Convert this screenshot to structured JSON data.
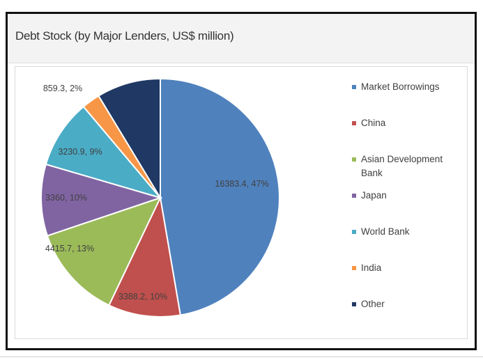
{
  "title": "Debt Stock (by Major Lenders, US$ million)",
  "chart_data": {
    "type": "pie",
    "title": "Debt Stock (by Major Lenders, US$ million)",
    "legend_position": "right",
    "slices": [
      {
        "label": "Market Borrowings",
        "value": 16383.4,
        "percent": 47,
        "data_label": "16383.4, 47%",
        "color": "#4f81bd"
      },
      {
        "label": "China",
        "value": 3388.2,
        "percent": 10,
        "data_label": "3388.2, 10%",
        "color": "#c0504d"
      },
      {
        "label": "Asian Development Bank",
        "value": 4415.7,
        "percent": 13,
        "data_label": "4415.7, 13%",
        "color": "#9bbb59"
      },
      {
        "label": "Japan",
        "value": 3360,
        "percent": 10,
        "data_label": "3360, 10%",
        "color": "#8064a2"
      },
      {
        "label": "World Bank",
        "value": 3230.9,
        "percent": 9,
        "data_label": "3230.9, 9%",
        "color": "#4bacc6"
      },
      {
        "label": "India",
        "value": 859.3,
        "percent": 2,
        "data_label": "859.3, 2%",
        "color": "#f79646"
      },
      {
        "label": "Other",
        "value": 3000,
        "percent": 9,
        "data_label": "",
        "color": "#1f3864"
      }
    ]
  }
}
